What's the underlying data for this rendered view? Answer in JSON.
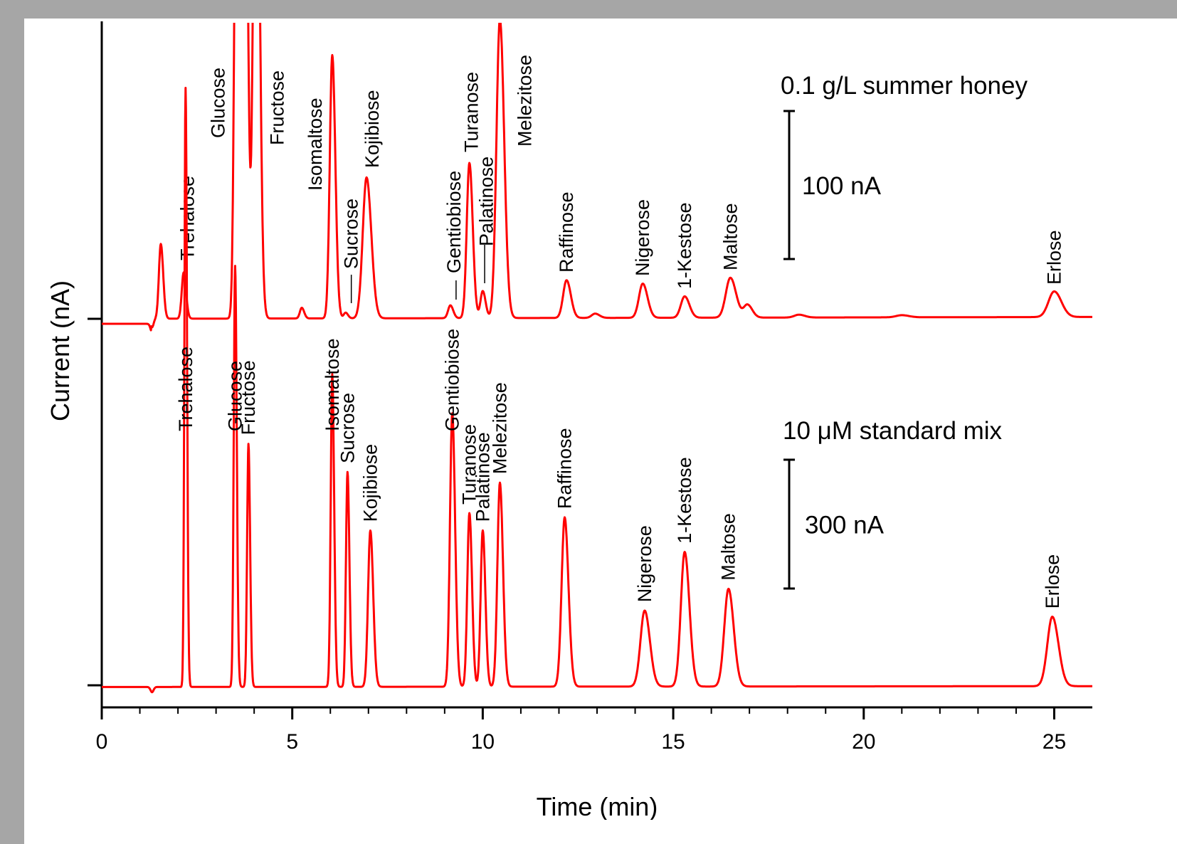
{
  "chart_data": {
    "type": "line",
    "xlabel": "Time (min)",
    "ylabel": "Current (nA)",
    "xlim": [
      0,
      26
    ],
    "x_ticks": [
      "0",
      "5",
      "10",
      "15",
      "20",
      "25"
    ],
    "grid": false,
    "legend": "none",
    "line_color": "#ff0000",
    "panels": [
      {
        "name": "honey",
        "title": "0.1 g/L summer honey",
        "scale_bar": {
          "label": "100 nA",
          "value_nA": 100
        },
        "note": "Glucose and Fructose peaks exceed the plotted range",
        "peaks": [
          {
            "t": 1.55,
            "h": 105,
            "w": 0.05
          },
          {
            "t": 2.15,
            "h": 65,
            "w": 0.05,
            "label": "Trehalose"
          },
          {
            "t": 3.55,
            "h": 900,
            "w": 0.06,
            "label": "Glucose"
          },
          {
            "t": 3.75,
            "h": 900,
            "w": 0.06
          },
          {
            "t": 4.05,
            "h": 900,
            "w": 0.07,
            "label": "Fructose"
          },
          {
            "t": 5.25,
            "h": 15,
            "w": 0.05
          },
          {
            "t": 6.05,
            "h": 370,
            "w": 0.065,
            "label": "Isomaltose"
          },
          {
            "t": 6.4,
            "h": 8,
            "w": 0.05,
            "label": "Sucrose"
          },
          {
            "t": 6.95,
            "h": 198,
            "w": 0.1,
            "label": "Kojibiose"
          },
          {
            "t": 9.15,
            "h": 18,
            "w": 0.06,
            "label": "Gentiobiose"
          },
          {
            "t": 9.65,
            "h": 218,
            "w": 0.07,
            "label": "Turanose"
          },
          {
            "t": 10.0,
            "h": 38,
            "w": 0.06,
            "label": "Palatinose"
          },
          {
            "t": 10.45,
            "h": 420,
            "w": 0.09,
            "label": "Melezitose"
          },
          {
            "t": 12.2,
            "h": 53,
            "w": 0.09,
            "label": "Raffinose"
          },
          {
            "t": 12.95,
            "h": 6,
            "w": 0.09
          },
          {
            "t": 14.2,
            "h": 48,
            "w": 0.1,
            "label": "Nigerose"
          },
          {
            "t": 15.3,
            "h": 30,
            "w": 0.1,
            "label": "1-Kestose"
          },
          {
            "t": 16.5,
            "h": 56,
            "w": 0.12,
            "label": "Maltose"
          },
          {
            "t": 16.95,
            "h": 18,
            "w": 0.1
          },
          {
            "t": 18.3,
            "h": 4,
            "w": 0.12
          },
          {
            "t": 21.0,
            "h": 3,
            "w": 0.15
          },
          {
            "t": 25.0,
            "h": 36,
            "w": 0.15,
            "label": "Erlose"
          }
        ]
      },
      {
        "name": "standard",
        "title": "10 μM standard mix",
        "scale_bar": {
          "label": "300 nA",
          "value_nA": 300
        },
        "peaks": [
          {
            "t": 2.2,
            "h": 1380,
            "w": 0.03,
            "label": "Trehalose"
          },
          {
            "t": 3.5,
            "h": 970,
            "w": 0.035,
            "label": "Glucose"
          },
          {
            "t": 3.85,
            "h": 560,
            "w": 0.035,
            "label": "Fructose"
          },
          {
            "t": 6.05,
            "h": 720,
            "w": 0.04,
            "label": "Isomaltose"
          },
          {
            "t": 6.45,
            "h": 495,
            "w": 0.04,
            "label": "Sucrose"
          },
          {
            "t": 7.05,
            "h": 360,
            "w": 0.06,
            "label": "Kojibiose"
          },
          {
            "t": 9.2,
            "h": 630,
            "w": 0.06,
            "label": "Gentiobiose"
          },
          {
            "t": 9.65,
            "h": 400,
            "w": 0.055,
            "label": "Turanose"
          },
          {
            "t": 10.0,
            "h": 360,
            "w": 0.055,
            "label": "Palatinose"
          },
          {
            "t": 10.45,
            "h": 470,
            "w": 0.065,
            "label": "Melezitose"
          },
          {
            "t": 12.15,
            "h": 390,
            "w": 0.08,
            "label": "Raffinose"
          },
          {
            "t": 14.25,
            "h": 175,
            "w": 0.11,
            "label": "Nigerose"
          },
          {
            "t": 15.3,
            "h": 310,
            "w": 0.1,
            "label": "1-Kestose"
          },
          {
            "t": 16.45,
            "h": 225,
            "w": 0.11,
            "label": "Maltose"
          },
          {
            "t": 24.95,
            "h": 160,
            "w": 0.13,
            "label": "Erlose"
          }
        ]
      }
    ]
  }
}
